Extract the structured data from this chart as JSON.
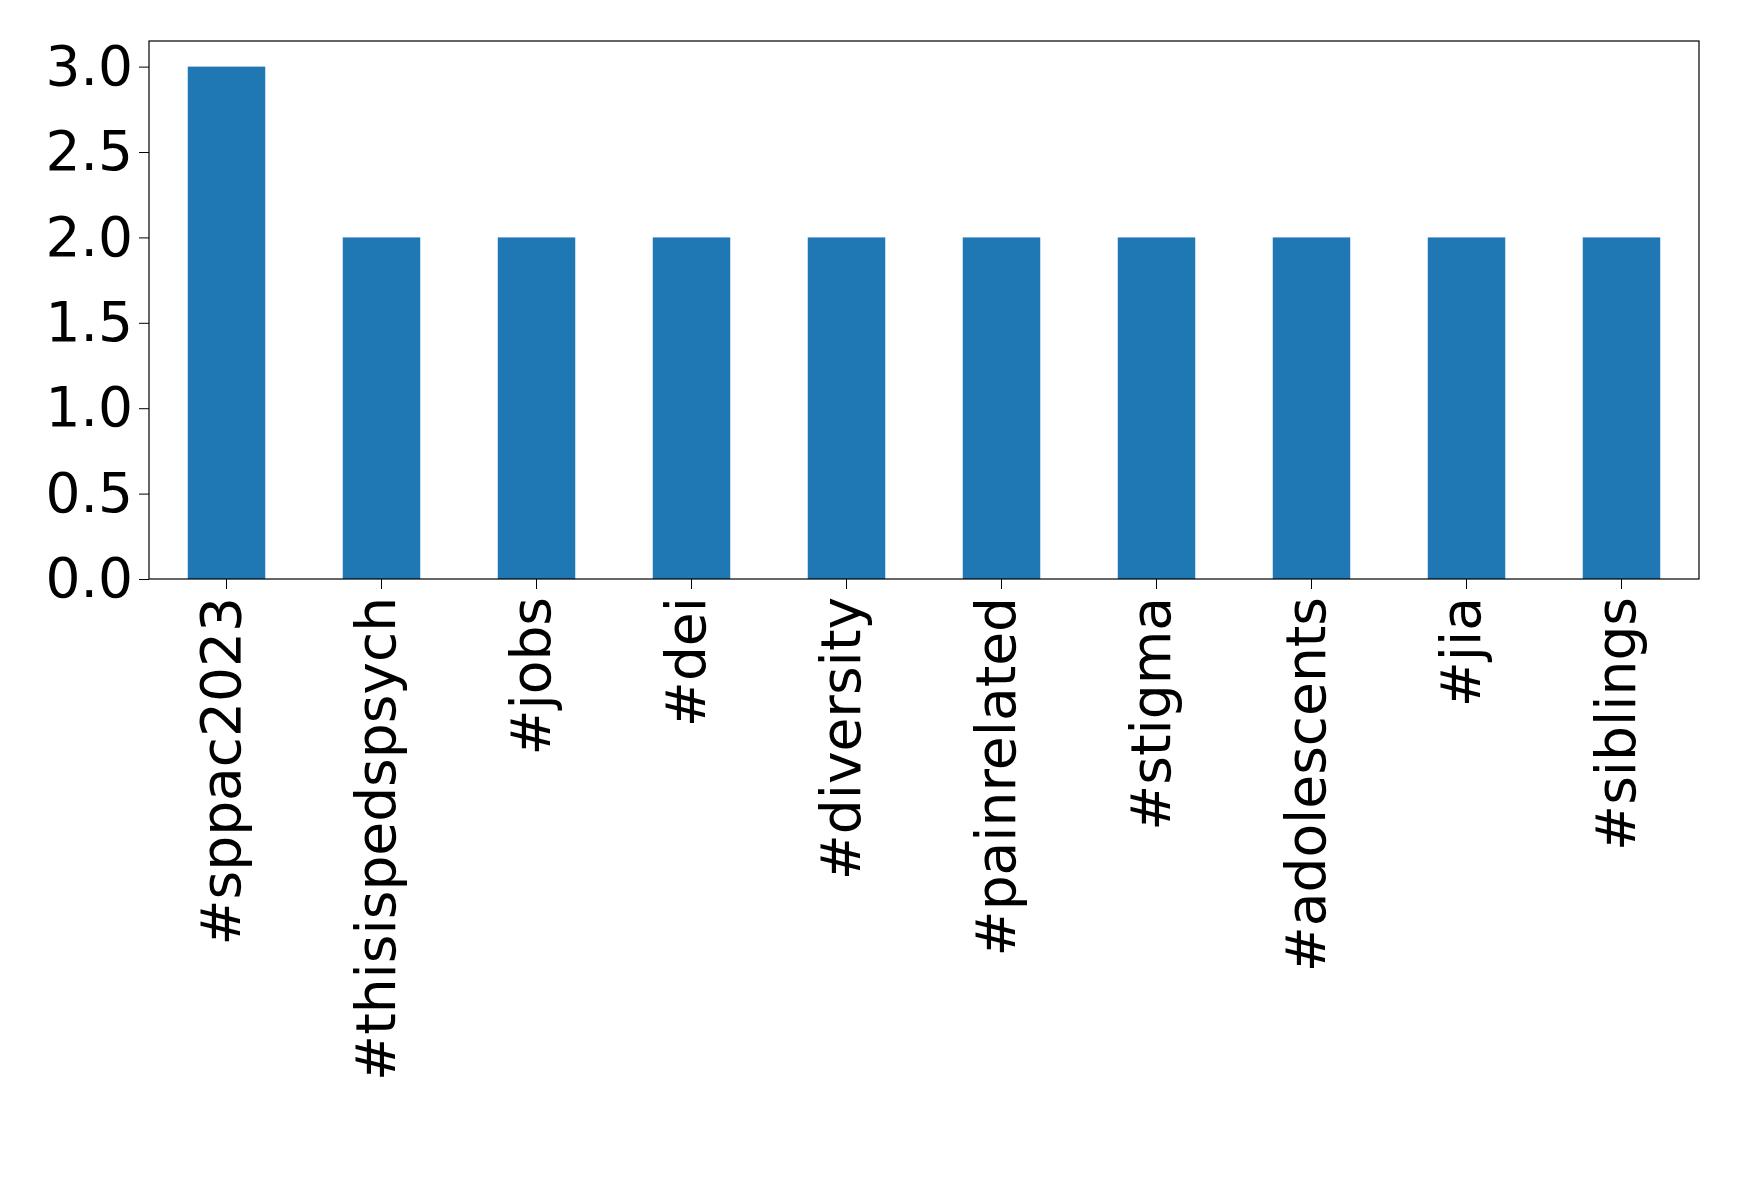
{
  "chart_data": {
    "type": "bar",
    "categories": [
      "#sppac2023",
      "#thisispedspsych",
      "#jobs",
      "#dei",
      "#diversity",
      "#painrelated",
      "#stigma",
      "#adolescents",
      "#jia",
      "#siblings"
    ],
    "values": [
      3,
      2,
      2,
      2,
      2,
      2,
      2,
      2,
      2,
      2
    ],
    "color": "#1f77b4",
    "ylim": [
      0,
      3.15
    ],
    "yticks": [
      {
        "value": 0,
        "label": "0.0"
      },
      {
        "value": 0.5,
        "label": "0.5"
      },
      {
        "value": 1,
        "label": "1.0"
      },
      {
        "value": 1.5,
        "label": "1.5"
      },
      {
        "value": 2,
        "label": "2.0"
      },
      {
        "value": 2.5,
        "label": "2.5"
      },
      {
        "value": 3,
        "label": "3.0"
      }
    ],
    "grid": false
  }
}
